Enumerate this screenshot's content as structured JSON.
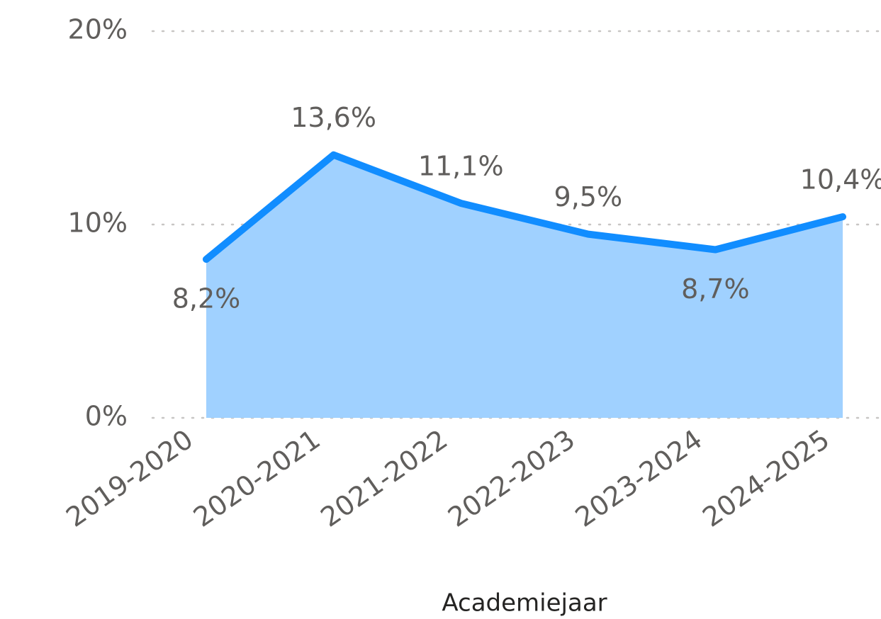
{
  "chart_data": {
    "type": "area",
    "x_label": "Academiejaar",
    "categories": [
      "2019-2020",
      "2020-2021",
      "2021-2022",
      "2022-2023",
      "2023-2024",
      "2024-2025"
    ],
    "values": [
      8.2,
      13.6,
      11.1,
      9.5,
      8.7,
      10.4
    ],
    "value_labels": [
      "8,2%",
      "13,6%",
      "11,1%",
      "9,5%",
      "8,7%",
      "10,4%"
    ],
    "line_color": "#118dff",
    "fill_color": "#a0d1ff",
    "ylim": [
      0,
      20
    ],
    "yticks": [
      {
        "value": 0,
        "label": "0%"
      },
      {
        "value": 10,
        "label": "10%"
      },
      {
        "value": 20,
        "label": "20%"
      }
    ],
    "grid": true
  }
}
